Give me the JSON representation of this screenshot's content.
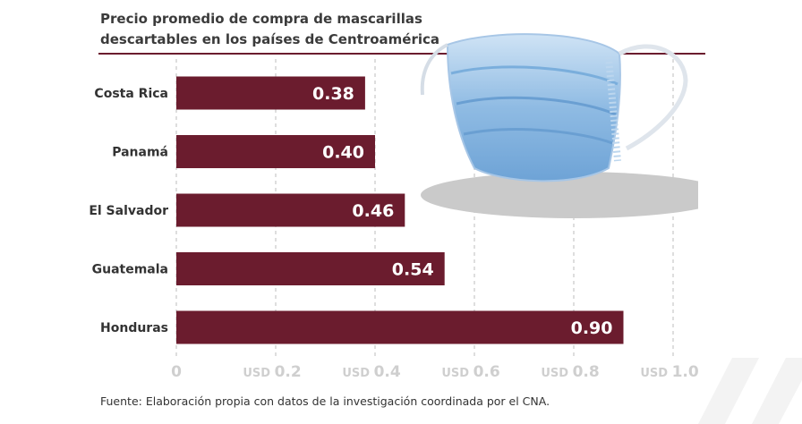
{
  "chart_data": {
    "type": "bar",
    "orientation": "horizontal",
    "title": "Precio promedio de compra de mascarillas descartables en los países de Centroamérica",
    "categories": [
      "Costa Rica",
      "Panamá",
      "El Salvador",
      "Guatemala",
      "Honduras"
    ],
    "values": [
      0.38,
      0.4,
      0.46,
      0.54,
      0.9
    ],
    "value_labels": [
      "0.38",
      "0.40",
      "0.46",
      "0.54",
      "0.90"
    ],
    "xlim": [
      0,
      1.0
    ],
    "ticks": [
      {
        "value": 0,
        "prefix": "",
        "label": "0"
      },
      {
        "value": 0.2,
        "prefix": "USD",
        "label": "0.2"
      },
      {
        "value": 0.4,
        "prefix": "USD",
        "label": "0.4"
      },
      {
        "value": 0.6,
        "prefix": "USD",
        "label": "0.6"
      },
      {
        "value": 0.8,
        "prefix": "USD",
        "label": "0.8"
      },
      {
        "value": 1.0,
        "prefix": "USD",
        "label": "1.0"
      }
    ],
    "grid": "vertical-dashed",
    "bar_color": "#6b1c2e"
  },
  "source": "Fuente: Elaboración propia con datos de la investigación coordinada por el CNA.",
  "colors": {
    "title_rule": "#6b1c2e",
    "grid": "#bdbdbd",
    "tick": "#cfcfcf"
  },
  "illustration": "surgical-mask"
}
